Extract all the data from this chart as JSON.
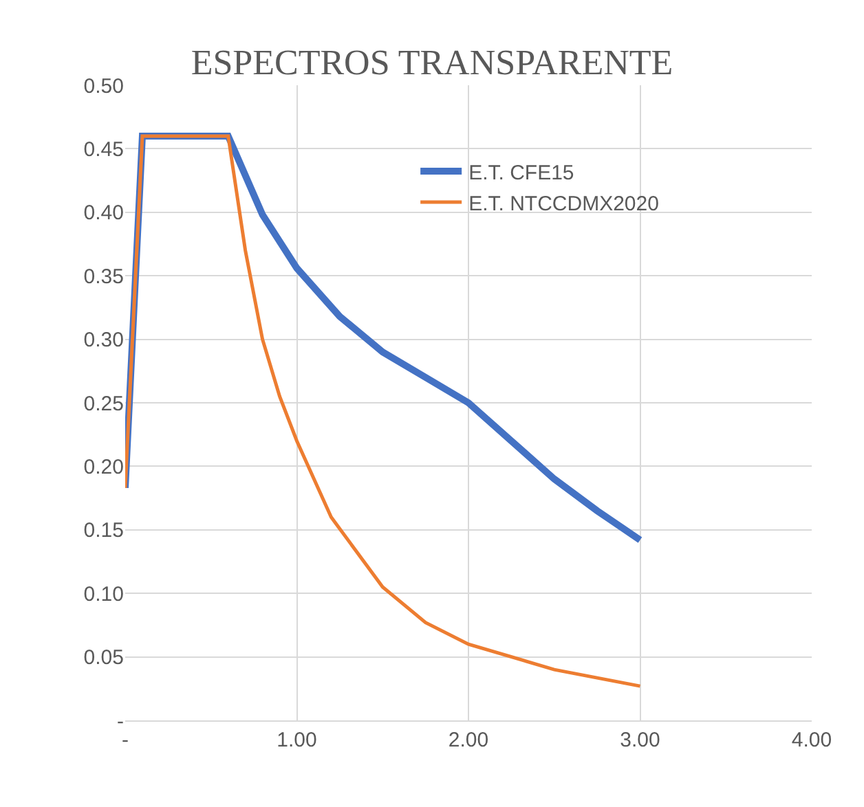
{
  "chart_data": {
    "type": "line",
    "title": "ESPECTROS TRANSPARENTE",
    "series": [
      {
        "name": "E.T. CFE15",
        "color": "#4472c4",
        "x": [
          0,
          0.1,
          0.6,
          0.8,
          1.0,
          1.25,
          1.5,
          1.75,
          2.0,
          2.25,
          2.5,
          2.75,
          3.0
        ],
        "values": [
          0.183,
          0.46,
          0.46,
          0.398,
          0.356,
          0.318,
          0.29,
          0.27,
          0.25,
          0.22,
          0.19,
          0.165,
          0.142
        ]
      },
      {
        "name": "E.T. NTCCDMX2020",
        "color": "#ed7d31",
        "x": [
          0,
          0.1,
          0.6,
          0.7,
          0.8,
          0.9,
          1.0,
          1.2,
          1.5,
          1.75,
          2.0,
          2.5,
          3.0
        ],
        "values": [
          0.183,
          0.46,
          0.46,
          0.37,
          0.3,
          0.255,
          0.22,
          0.16,
          0.105,
          0.077,
          0.06,
          0.04,
          0.027
        ]
      }
    ],
    "xlim": [
      0,
      4
    ],
    "xticks": [
      {
        "value": 0,
        "label": "-"
      },
      {
        "value": 1,
        "label": "1.00"
      },
      {
        "value": 2,
        "label": "2.00"
      },
      {
        "value": 3,
        "label": "3.00"
      },
      {
        "value": 4,
        "label": "4.00"
      }
    ],
    "ylim": [
      0,
      0.5
    ],
    "yticks": [
      {
        "value": 0,
        "label": "-"
      },
      0.05,
      {
        "value": 0.1,
        "label": "0.10"
      },
      0.15,
      {
        "value": 0.2,
        "label": "0.20"
      },
      0.25,
      {
        "value": 0.3,
        "label": "0.30"
      },
      0.35,
      {
        "value": 0.4,
        "label": "0.40"
      },
      0.45,
      {
        "value": 0.5,
        "label": "0.50"
      }
    ],
    "grid": true,
    "legend": "top right",
    "line_style": "solid"
  }
}
